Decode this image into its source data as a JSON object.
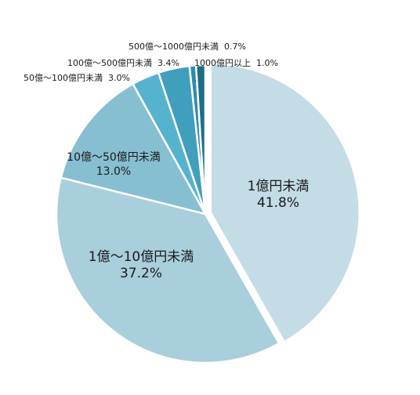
{
  "chart_data": {
    "type": "pie",
    "title": "",
    "slices": [
      {
        "label": "1億円未満",
        "value_text": "41.8%",
        "value": 41.8,
        "color": "#c3dce6"
      },
      {
        "label": "1億～10億円未満",
        "value_text": "37.2%",
        "value": 37.2,
        "color": "#a9cedc"
      },
      {
        "label": "10億～50億円未満",
        "value_text": "13.0%",
        "value": 13.0,
        "color": "#86bfd2"
      },
      {
        "label": "50億～100億円未満",
        "value_text": "3.0%",
        "value": 3.0,
        "color": "#55b3cf"
      },
      {
        "label": "100億～500億円未満",
        "value_text": "3.4%",
        "value": 3.4,
        "color": "#3f9fbd"
      },
      {
        "label": "500億～1000億円未満",
        "value_text": "0.7%",
        "value": 0.7,
        "color": "#2f8bab"
      },
      {
        "label": "1000億円以上",
        "value_text": "1.0%",
        "value": 1.0,
        "color": "#1f6d87"
      }
    ]
  }
}
